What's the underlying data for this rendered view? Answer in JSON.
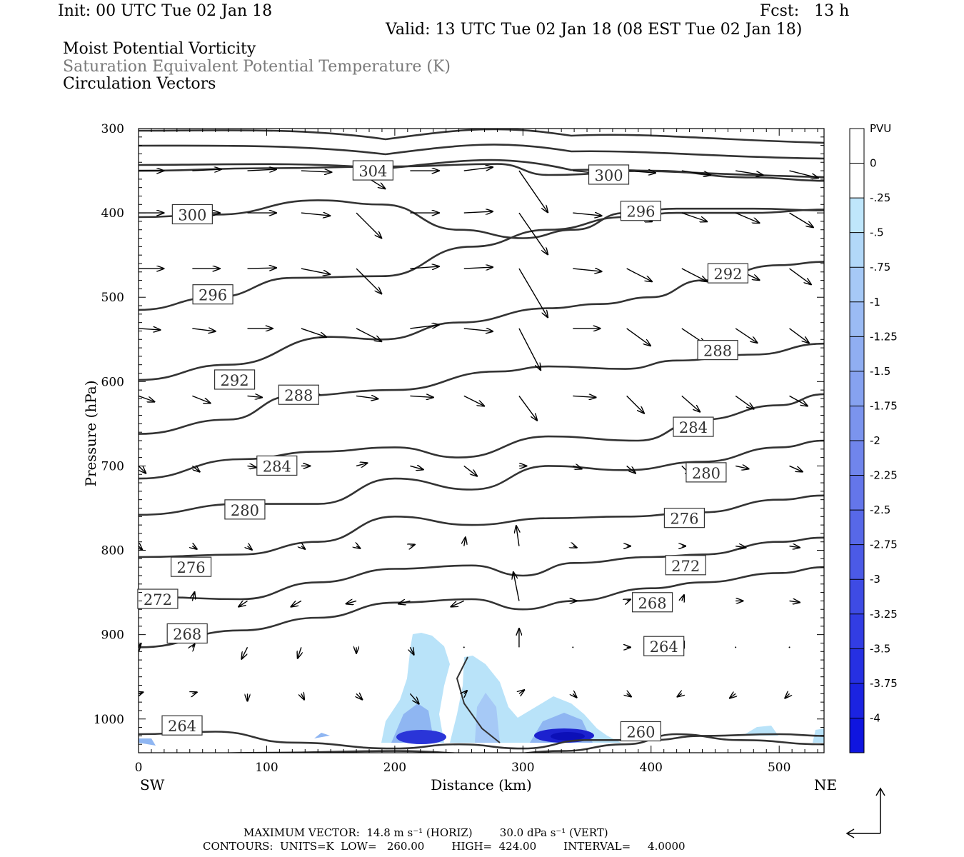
{
  "header": {
    "init": "Init: 00 UTC Tue 02 Jan 18",
    "fcst": "Fcst:   13 h",
    "valid": "Valid: 13 UTC Tue 02 Jan 18 (08 EST Tue 02 Jan 18)",
    "field1": "Moist Potential Vorticity",
    "field2": "Saturation Equivalent Potential Temperature (K)",
    "field3": "Circulation Vectors"
  },
  "footer": {
    "max_vector": "MAXIMUM VECTOR:  14.8 m s⁻¹ (HORIZ)        30.0 dPa s⁻¹ (VERT)",
    "contours": "CONTOURS:  UNITS=K  LOW=   260.00        HIGH=  424.00        INTERVAL=     4.0000"
  },
  "colors": {
    "contour": "#333333",
    "pv_light": "#b9e3f9",
    "pv_mid": "#8fb6f2",
    "pv_dark": "#2424e0"
  },
  "colorbar": {
    "unit": "PVU",
    "labels": [
      "0",
      "-.25",
      "-.5",
      "-.75",
      "-1",
      "-1.25",
      "-1.5",
      "-1.75",
      "-2",
      "-2.25",
      "-2.5",
      "-2.75",
      "-3",
      "-3.25",
      "-3.5",
      "-3.75",
      "-4"
    ],
    "colors": [
      "#ffffff",
      "#ffffff",
      "#bfe6fb",
      "#b2d8f8",
      "#a6c9f6",
      "#9bbbf4",
      "#90aef2",
      "#86a2f0",
      "#7b94ee",
      "#7085ec",
      "#6476ea",
      "#5768e8",
      "#4b5ae6",
      "#3e4be4",
      "#323de3",
      "#2630e2",
      "#1b23e1",
      "#0f15df"
    ]
  },
  "chart_data": {
    "type": "cross-section",
    "xlabel": "Distance (km)",
    "ylabel": "Pressure (hPa)",
    "x_left_label": "SW",
    "x_right_label": "NE",
    "xlim": [
      0,
      535
    ],
    "ylim": [
      1040,
      300
    ],
    "x_ticks": [
      0,
      100,
      200,
      300,
      400,
      500
    ],
    "y_ticks": [
      300,
      400,
      500,
      600,
      700,
      800,
      900,
      1000
    ],
    "contours": [
      {
        "label": "304",
        "label_x": 183,
        "label_p": 350,
        "points": [
          [
            0,
            350
          ],
          [
            100,
            347
          ],
          [
            200,
            345
          ],
          [
            280,
            342
          ],
          [
            320,
            355
          ],
          [
            400,
            350
          ],
          [
            480,
            358
          ],
          [
            535,
            362
          ]
        ]
      },
      {
        "label": "300",
        "label_x": 42,
        "label_p": 402,
        "points": [
          [
            0,
            405
          ],
          [
            60,
            402
          ],
          [
            140,
            385
          ],
          [
            190,
            390
          ],
          [
            250,
            420
          ],
          [
            300,
            430
          ],
          [
            340,
            420
          ],
          [
            380,
            400
          ],
          [
            420,
            395
          ],
          [
            480,
            395
          ],
          [
            535,
            397
          ]
        ]
      },
      {
        "label": "300",
        "label_x": 367,
        "label_p": 355,
        "points": []
      },
      {
        "label": "296",
        "label_x": 58,
        "label_p": 497,
        "points": [
          [
            0,
            515
          ],
          [
            60,
            500
          ],
          [
            120,
            477
          ],
          [
            190,
            475
          ],
          [
            260,
            440
          ],
          [
            320,
            420
          ],
          [
            380,
            405
          ],
          [
            420,
            400
          ],
          [
            480,
            400
          ],
          [
            535,
            396
          ]
        ]
      },
      {
        "label": "296",
        "label_x": 392,
        "label_p": 398,
        "points": []
      },
      {
        "label": "292",
        "label_x": 75,
        "label_p": 598,
        "points": [
          [
            0,
            598
          ],
          [
            70,
            580
          ],
          [
            150,
            547
          ],
          [
            190,
            550
          ],
          [
            250,
            530
          ],
          [
            320,
            513
          ],
          [
            360,
            508
          ],
          [
            400,
            500
          ],
          [
            440,
            480
          ],
          [
            500,
            462
          ],
          [
            535,
            458
          ]
        ]
      },
      {
        "label": "292",
        "label_x": 460,
        "label_p": 472,
        "points": []
      },
      {
        "label": "288",
        "label_x": 125,
        "label_p": 616,
        "points": [
          [
            0,
            662
          ],
          [
            70,
            645
          ],
          [
            120,
            617
          ],
          [
            200,
            610
          ],
          [
            280,
            588
          ],
          [
            320,
            582
          ],
          [
            380,
            585
          ],
          [
            420,
            575
          ],
          [
            480,
            568
          ],
          [
            535,
            555
          ]
        ]
      },
      {
        "label": "288",
        "label_x": 452,
        "label_p": 563,
        "points": []
      },
      {
        "label": "284",
        "label_x": 108,
        "label_p": 700,
        "points": [
          [
            0,
            715
          ],
          [
            80,
            692
          ],
          [
            140,
            683
          ],
          [
            200,
            678
          ],
          [
            250,
            690
          ],
          [
            320,
            665
          ],
          [
            390,
            670
          ],
          [
            440,
            645
          ],
          [
            500,
            628
          ],
          [
            535,
            615
          ]
        ]
      },
      {
        "label": "284",
        "label_x": 433,
        "label_p": 654,
        "points": []
      },
      {
        "label": "280",
        "label_x": 83,
        "label_p": 752,
        "points": [
          [
            0,
            758
          ],
          [
            80,
            745
          ],
          [
            140,
            745
          ],
          [
            200,
            715
          ],
          [
            260,
            728
          ],
          [
            320,
            700
          ],
          [
            380,
            705
          ],
          [
            440,
            695
          ],
          [
            500,
            678
          ],
          [
            535,
            670
          ]
        ]
      },
      {
        "label": "280",
        "label_x": 443,
        "label_p": 708,
        "points": []
      },
      {
        "label": "276",
        "label_x": 41,
        "label_p": 820,
        "points": [
          [
            0,
            808
          ],
          [
            80,
            805
          ],
          [
            140,
            790
          ],
          [
            200,
            760
          ],
          [
            260,
            770
          ],
          [
            320,
            762
          ],
          [
            380,
            760
          ],
          [
            440,
            755
          ],
          [
            500,
            740
          ],
          [
            535,
            735
          ]
        ]
      },
      {
        "label": "276",
        "label_x": 426,
        "label_p": 762,
        "points": []
      },
      {
        "label": "272",
        "label_x": 15,
        "label_p": 858,
        "points": [
          [
            0,
            855
          ],
          [
            80,
            858
          ],
          [
            140,
            838
          ],
          [
            200,
            822
          ],
          [
            260,
            818
          ],
          [
            300,
            830
          ],
          [
            340,
            815
          ],
          [
            400,
            808
          ],
          [
            440,
            805
          ],
          [
            500,
            790
          ],
          [
            535,
            785
          ]
        ]
      },
      {
        "label": "272",
        "label_x": 427,
        "label_p": 818,
        "points": []
      },
      {
        "label": "268",
        "label_x": 38,
        "label_p": 899,
        "points": [
          [
            0,
            915
          ],
          [
            80,
            895
          ],
          [
            140,
            880
          ],
          [
            200,
            862
          ],
          [
            260,
            858
          ],
          [
            300,
            870
          ],
          [
            340,
            860
          ],
          [
            400,
            845
          ],
          [
            440,
            838
          ],
          [
            500,
            827
          ],
          [
            535,
            820
          ]
        ]
      },
      {
        "label": "268",
        "label_x": 401,
        "label_p": 862,
        "points": []
      },
      {
        "label": "264",
        "label_x": 34,
        "label_p": 1008,
        "points": [
          [
            0,
            1018
          ],
          [
            60,
            1015
          ],
          [
            120,
            1028
          ],
          [
            200,
            1035
          ],
          [
            250,
            1030
          ],
          [
            300,
            1035
          ],
          [
            350,
            1025
          ],
          [
            400,
            1025
          ],
          [
            440,
            1020
          ],
          [
            500,
            1018
          ],
          [
            535,
            1020
          ]
        ]
      },
      {
        "label": "264",
        "label_x": 410,
        "label_p": 914,
        "points": []
      },
      {
        "label": "260",
        "label_x": 392,
        "label_p": 1015,
        "points": [
          [
            0,
            1043
          ],
          [
            100,
            1040
          ],
          [
            200,
            1038
          ],
          [
            280,
            1042
          ],
          [
            330,
            1038
          ],
          [
            380,
            1030
          ],
          [
            420,
            1018
          ],
          [
            470,
            1025
          ],
          [
            535,
            1030
          ]
        ]
      }
    ],
    "pv_shading_note": "negative moist PV shaded near surface, 190-330 km",
    "max_vector_horiz": "14.8 m s-1",
    "max_vector_vert": "30.0 dPa s-1",
    "contour_low": 260.0,
    "contour_high": 424.0,
    "contour_interval": 4.0
  }
}
